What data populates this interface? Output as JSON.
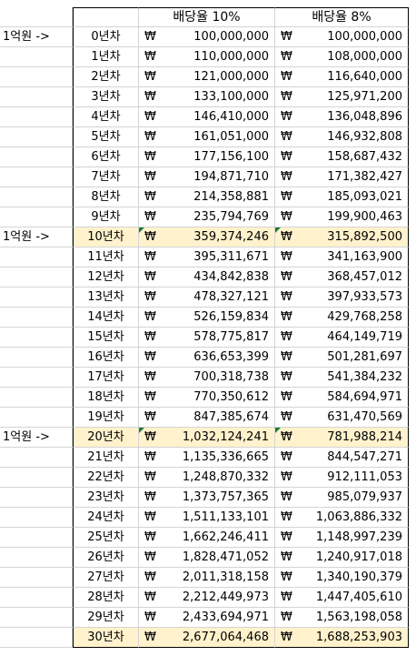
{
  "header": {
    "col2": "배당율 10%",
    "col3": "배당율 8%"
  },
  "currency": "₩",
  "rows": [
    {
      "marker": "1억원 ->",
      "year": "0년차",
      "a": "100,000,000",
      "b": "100,000,000"
    },
    {
      "marker": "",
      "year": "1년차",
      "a": "110,000,000",
      "b": "108,000,000"
    },
    {
      "marker": "",
      "year": "2년차",
      "a": "121,000,000",
      "b": "116,640,000"
    },
    {
      "marker": "",
      "year": "3년차",
      "a": "133,100,000",
      "b": "125,971,200"
    },
    {
      "marker": "",
      "year": "4년차",
      "a": "146,410,000",
      "b": "136,048,896"
    },
    {
      "marker": "",
      "year": "5년차",
      "a": "161,051,000",
      "b": "146,932,808"
    },
    {
      "marker": "",
      "year": "6년차",
      "a": "177,156,100",
      "b": "158,687,432"
    },
    {
      "marker": "",
      "year": "7년차",
      "a": "194,871,710",
      "b": "171,382,427"
    },
    {
      "marker": "",
      "year": "8년차",
      "a": "214,358,881",
      "b": "185,093,021"
    },
    {
      "marker": "",
      "year": "9년차",
      "a": "235,794,769",
      "b": "199,900,463"
    },
    {
      "marker": "1억원 ->",
      "year": "10년차",
      "a": "359,374,246",
      "b": "315,892,500",
      "highlight": true
    },
    {
      "marker": "",
      "year": "11년차",
      "a": "395,311,671",
      "b": "341,163,900"
    },
    {
      "marker": "",
      "year": "12년차",
      "a": "434,842,838",
      "b": "368,457,012"
    },
    {
      "marker": "",
      "year": "13년차",
      "a": "478,327,121",
      "b": "397,933,573"
    },
    {
      "marker": "",
      "year": "14년차",
      "a": "526,159,834",
      "b": "429,768,258"
    },
    {
      "marker": "",
      "year": "15년차",
      "a": "578,775,817",
      "b": "464,149,719"
    },
    {
      "marker": "",
      "year": "16년차",
      "a": "636,653,399",
      "b": "501,281,697"
    },
    {
      "marker": "",
      "year": "17년차",
      "a": "700,318,738",
      "b": "541,384,232"
    },
    {
      "marker": "",
      "year": "18년차",
      "a": "770,350,612",
      "b": "584,694,971"
    },
    {
      "marker": "",
      "year": "19년차",
      "a": "847,385,674",
      "b": "631,470,569"
    },
    {
      "marker": "1억원 ->",
      "year": "20년차",
      "a": "1,032,124,241",
      "b": "781,988,214",
      "highlight": true
    },
    {
      "marker": "",
      "year": "21년차",
      "a": "1,135,336,665",
      "b": "844,547,271"
    },
    {
      "marker": "",
      "year": "22년차",
      "a": "1,248,870,332",
      "b": "912,111,053"
    },
    {
      "marker": "",
      "year": "23년차",
      "a": "1,373,757,365",
      "b": "985,079,937"
    },
    {
      "marker": "",
      "year": "24년차",
      "a": "1,511,133,101",
      "b": "1,063,886,332"
    },
    {
      "marker": "",
      "year": "25년차",
      "a": "1,662,246,411",
      "b": "1,148,997,239"
    },
    {
      "marker": "",
      "year": "26년차",
      "a": "1,828,471,052",
      "b": "1,240,917,018"
    },
    {
      "marker": "",
      "year": "27년차",
      "a": "2,011,318,158",
      "b": "1,340,190,379"
    },
    {
      "marker": "",
      "year": "28년차",
      "a": "2,212,449,973",
      "b": "1,447,405,610"
    },
    {
      "marker": "",
      "year": "29년차",
      "a": "2,433,694,971",
      "b": "1,563,198,058"
    },
    {
      "marker": "",
      "year": "30년차",
      "a": "2,677,064,468",
      "b": "1,688,253,903",
      "highlight": true
    }
  ]
}
